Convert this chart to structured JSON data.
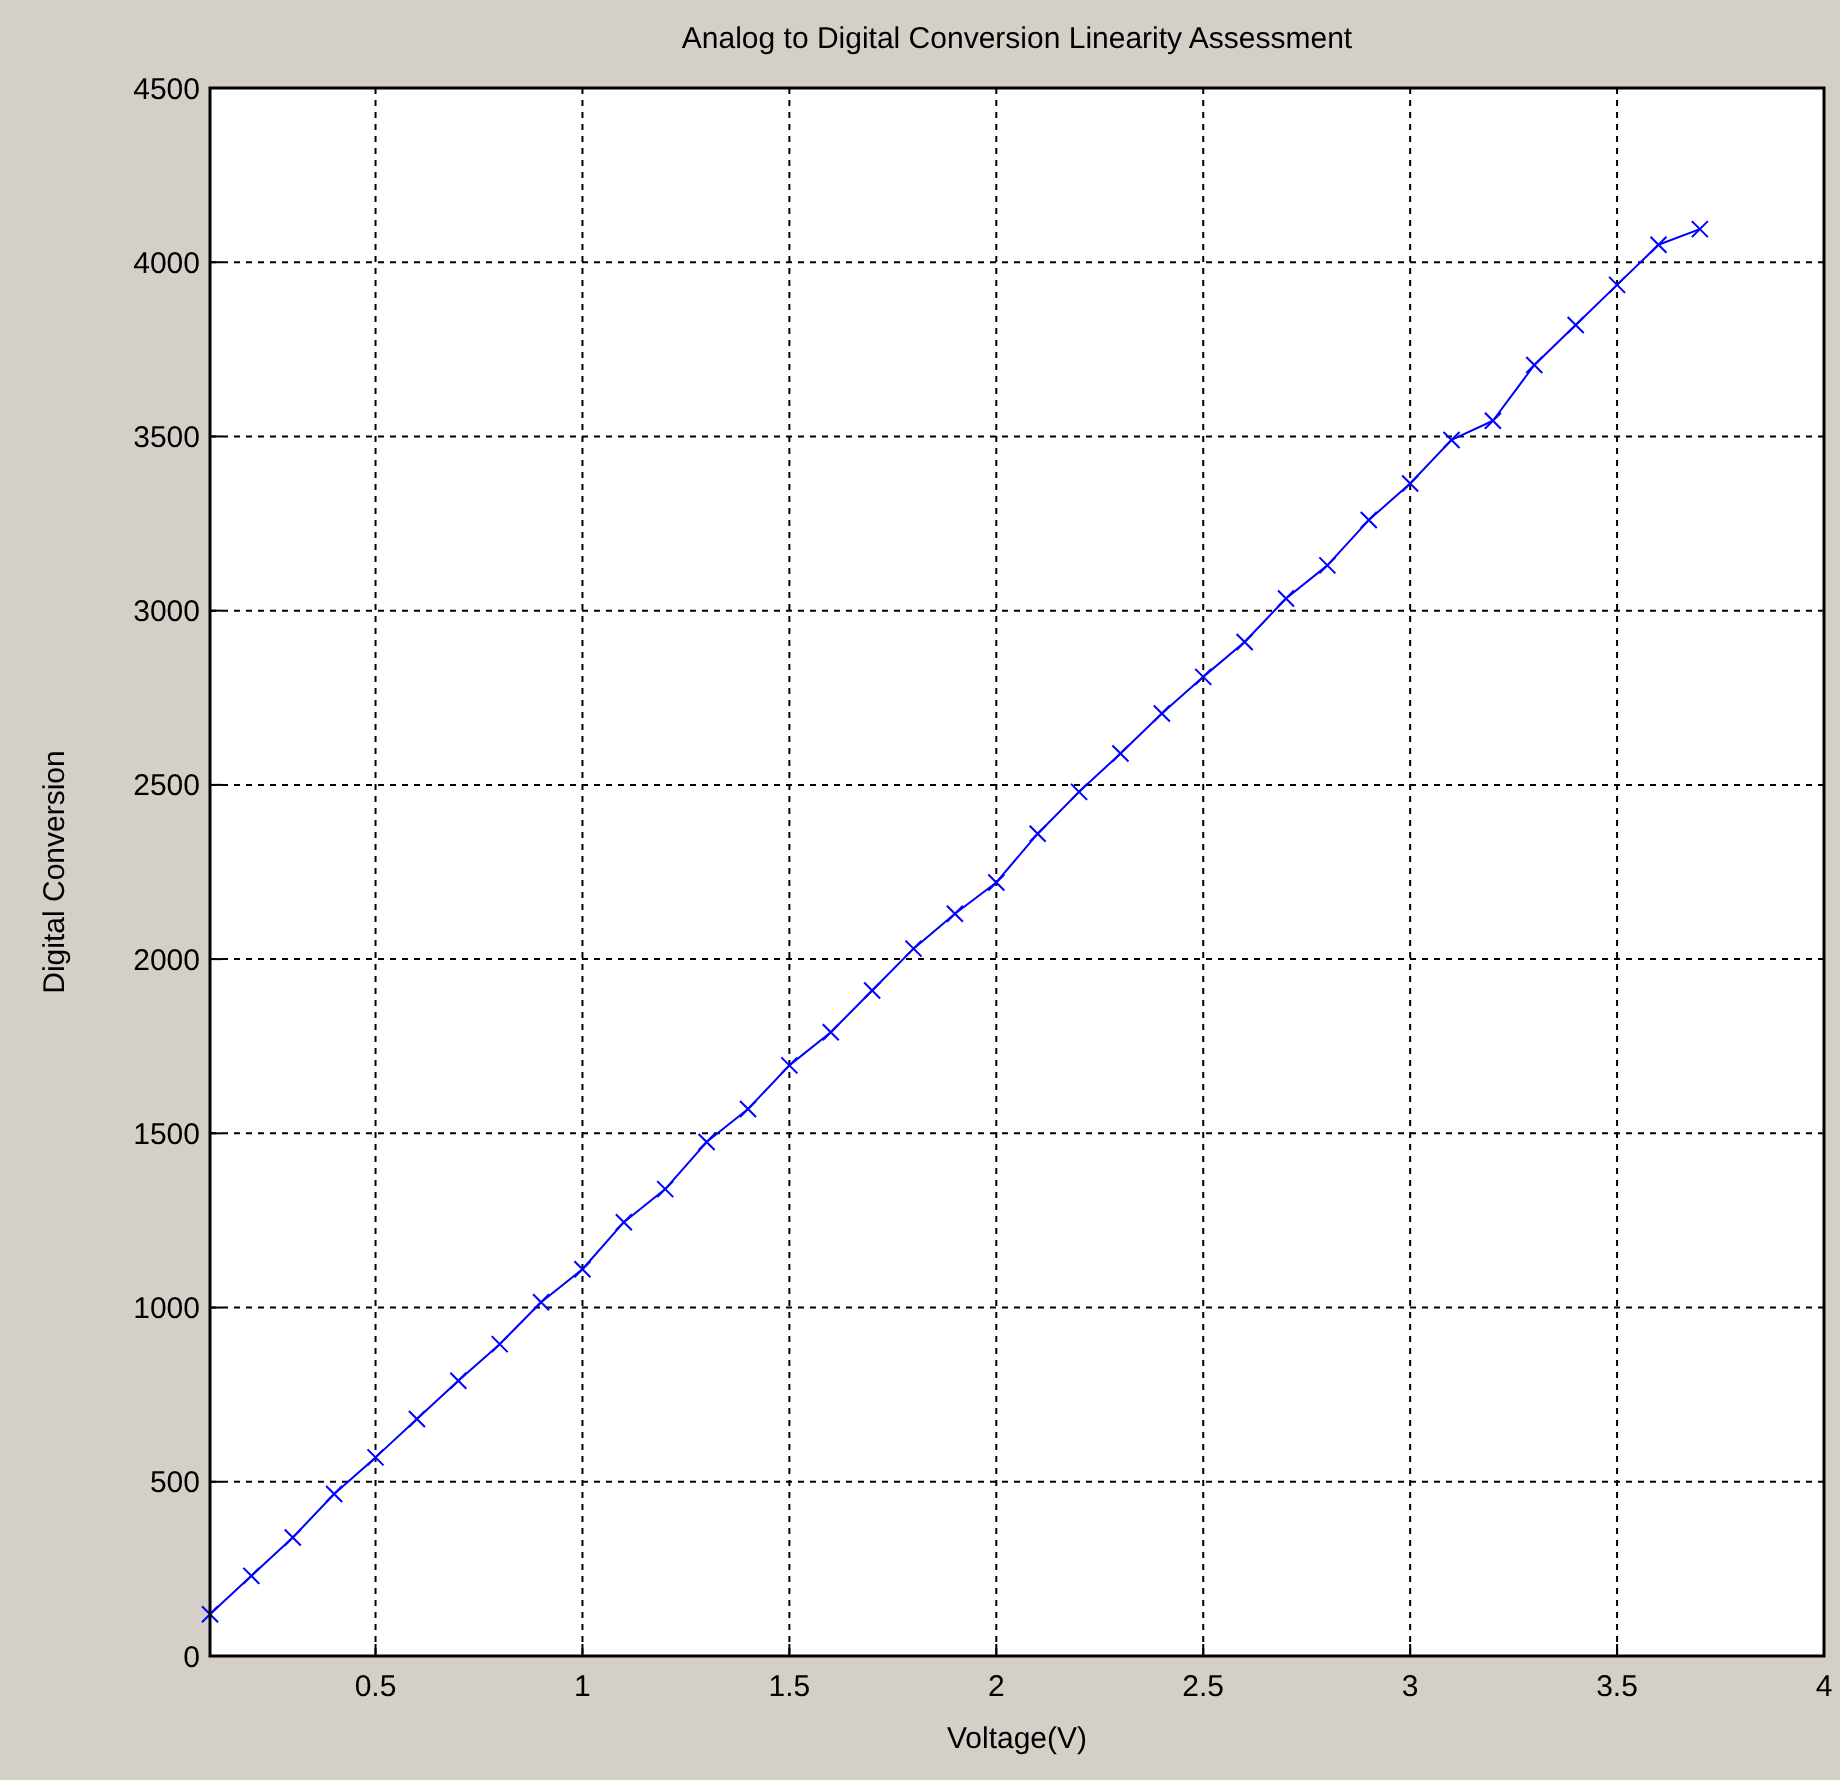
{
  "chart_data": {
    "type": "line",
    "title": "Analog to Digital Conversion Linearity Assessment",
    "xlabel": "Voltage(V)",
    "ylabel": "Digital Conversion",
    "x": [
      0.1,
      0.2,
      0.3,
      0.4,
      0.5,
      0.6,
      0.7,
      0.8,
      0.9,
      1.0,
      1.1,
      1.2,
      1.3,
      1.4,
      1.5,
      1.6,
      1.7,
      1.8,
      1.9,
      2.0,
      2.1,
      2.2,
      2.3,
      2.4,
      2.5,
      2.6,
      2.7,
      2.8,
      2.9,
      3.0,
      3.1,
      3.2,
      3.3,
      3.4,
      3.5,
      3.6,
      3.7
    ],
    "series": [
      {
        "color": "#0000ff",
        "values": [
          120,
          230,
          340,
          465,
          570,
          680,
          790,
          895,
          1015,
          1110,
          1245,
          1340,
          1475,
          1570,
          1695,
          1790,
          1910,
          2030,
          2130,
          2220,
          2360,
          2480,
          2590,
          2705,
          2810,
          2910,
          3035,
          3130,
          3260,
          3365,
          3490,
          3545,
          3705,
          3820,
          3935,
          4050,
          4095
        ]
      }
    ],
    "xlim": [
      0.1,
      4
    ],
    "xticks": [
      0.5,
      1,
      1.5,
      2,
      2.5,
      3,
      3.5,
      4
    ],
    "ylim": [
      0,
      4500
    ],
    "yticks": [
      0,
      500,
      1000,
      1500,
      2000,
      2500,
      3000,
      3500,
      4000,
      4500
    ],
    "grid": true,
    "marker": "cross",
    "line_style": "solid"
  }
}
